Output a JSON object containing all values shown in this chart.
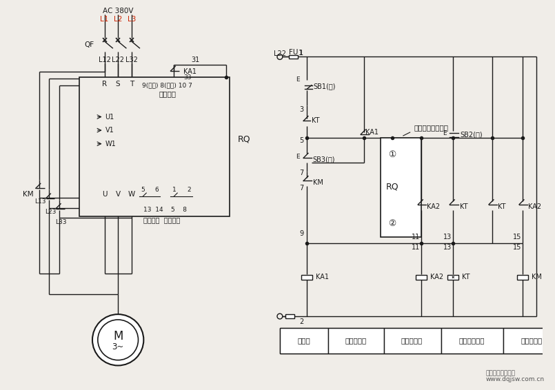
{
  "bg_color": "#f0ede8",
  "line_color": "#1a1a1a",
  "red_color": "#cc2200",
  "gray_color": "#888888",
  "watermark1": "电气自动化技术网",
  "watermark2": "www.dqjsw.com.cn",
  "ac_label": "AC 380V",
  "bottom_labels": [
    "燕断器",
    "电动机控制",
    "运行继电器",
    "延时停止回路",
    "运行接触器"
  ]
}
